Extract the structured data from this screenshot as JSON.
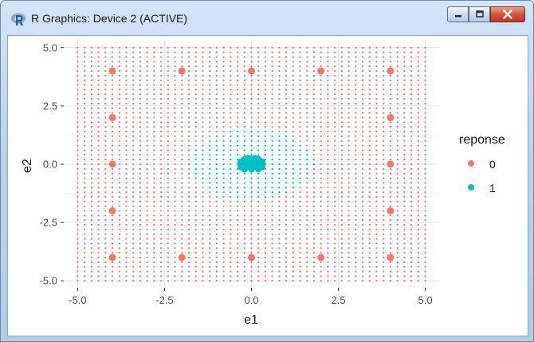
{
  "window": {
    "title": "R Graphics: Device 2 (ACTIVE)",
    "app_icon": "r-logo-icon",
    "buttons": {
      "minimize": "minimize-icon",
      "maximize": "maximize-icon",
      "close": "close-icon"
    }
  },
  "chart_data": {
    "type": "scatter",
    "xlabel": "e1",
    "ylabel": "e2",
    "xlim": [
      -5.4,
      5.4
    ],
    "ylim": [
      -5.3,
      5.3
    ],
    "x_ticks": [
      -5.0,
      -2.5,
      0.0,
      2.5,
      5.0
    ],
    "x_tick_labels": [
      "-5.0",
      "-2.5",
      "0.0",
      "2.5",
      "5.0"
    ],
    "y_ticks": [
      -5.0,
      -2.5,
      0.0,
      2.5,
      5.0
    ],
    "y_tick_labels": [
      "-5.0",
      "-2.5",
      "0.0",
      "2.5",
      "5.0"
    ],
    "grid": true,
    "legend": {
      "title": "reponse",
      "placement": "right",
      "entries": [
        {
          "label": "0",
          "color": "#F8766D"
        },
        {
          "label": "1",
          "color": "#00BFC4"
        }
      ]
    },
    "grid_points": {
      "x_range": [
        -5.0,
        5.0
      ],
      "y_range": [
        -5.0,
        5.0
      ],
      "step": 0.2,
      "class_1_region": "ellipse e1 in [-1.8, 1.8], e2 in [-1.5, 1.5]"
    },
    "series": [
      {
        "name": "0",
        "color": "#F8766D",
        "points": [
          [
            -4,
            4
          ],
          [
            -2,
            4
          ],
          [
            0,
            4
          ],
          [
            2,
            4
          ],
          [
            4,
            4
          ],
          [
            -4,
            2
          ],
          [
            4,
            2
          ],
          [
            -4,
            0
          ],
          [
            4,
            0
          ],
          [
            -4,
            -2
          ],
          [
            4,
            -2
          ],
          [
            -4,
            -4
          ],
          [
            -2,
            -4
          ],
          [
            0,
            -4
          ],
          [
            2,
            -4
          ],
          [
            4,
            -4
          ]
        ]
      },
      {
        "name": "1",
        "color": "#00BFC4",
        "points": [
          [
            -0.3,
            0.1
          ],
          [
            -0.3,
            -0.1
          ],
          [
            -0.2,
            0.2
          ],
          [
            -0.2,
            0.0
          ],
          [
            -0.2,
            -0.2
          ],
          [
            -0.1,
            0.1
          ],
          [
            -0.1,
            -0.1
          ],
          [
            0.0,
            0.2
          ],
          [
            0.0,
            0.0
          ],
          [
            0.0,
            -0.2
          ],
          [
            0.1,
            0.1
          ],
          [
            0.1,
            -0.1
          ],
          [
            0.2,
            0.2
          ],
          [
            0.2,
            0.0
          ],
          [
            0.2,
            -0.2
          ],
          [
            0.3,
            0.1
          ],
          [
            0.3,
            -0.1
          ],
          [
            -0.1,
            0.25
          ],
          [
            0.1,
            0.25
          ]
        ]
      }
    ]
  }
}
